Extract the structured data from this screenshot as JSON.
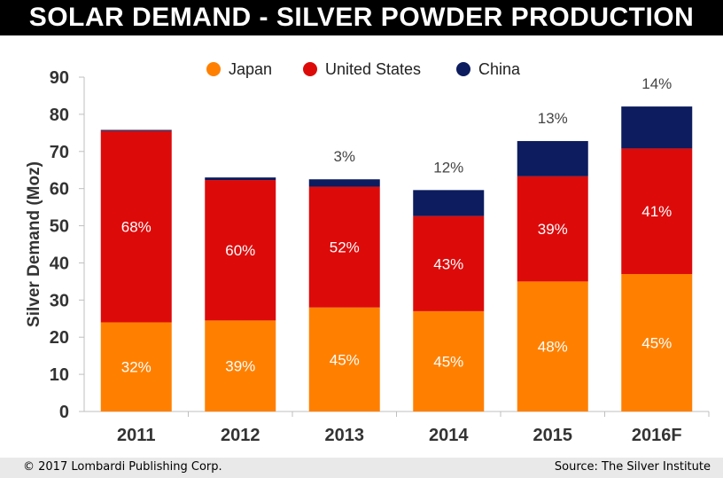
{
  "title": "SOLAR DEMAND - SILVER POWDER PRODUCTION",
  "footer": {
    "copyright": "© 2017 Lombardi Publishing Corp.",
    "source": "Source: The Silver Institute"
  },
  "chart_data": {
    "type": "bar",
    "stacked": true,
    "categories": [
      "2011",
      "2012",
      "2013",
      "2014",
      "2015",
      "2016F"
    ],
    "series": [
      {
        "name": "Japan",
        "color": "#ff8000",
        "values": [
          24,
          24.5,
          28,
          27,
          35,
          37
        ],
        "labels": [
          "32%",
          "39%",
          "45%",
          "45%",
          "48%",
          "45%"
        ]
      },
      {
        "name": "United States",
        "color": "#dd0a0a",
        "values": [
          51.5,
          37.8,
          32.5,
          25.6,
          28.3,
          33.8
        ],
        "labels": [
          "68%",
          "60%",
          "52%",
          "43%",
          "39%",
          "41%"
        ]
      },
      {
        "name": "China",
        "color": "#0c1c5e",
        "values": [
          0.3,
          0.7,
          2,
          7,
          9.5,
          11.3
        ],
        "labels": [
          "",
          "",
          "3%",
          "12%",
          "13%",
          "14%"
        ]
      }
    ],
    "ylabel": "Silver Demand (Moz)",
    "xlabel": "",
    "ylim": [
      0,
      90
    ],
    "yticks": [
      0,
      10,
      20,
      30,
      40,
      50,
      60,
      70,
      80,
      90
    ],
    "grid": false,
    "legend_position": "top"
  }
}
